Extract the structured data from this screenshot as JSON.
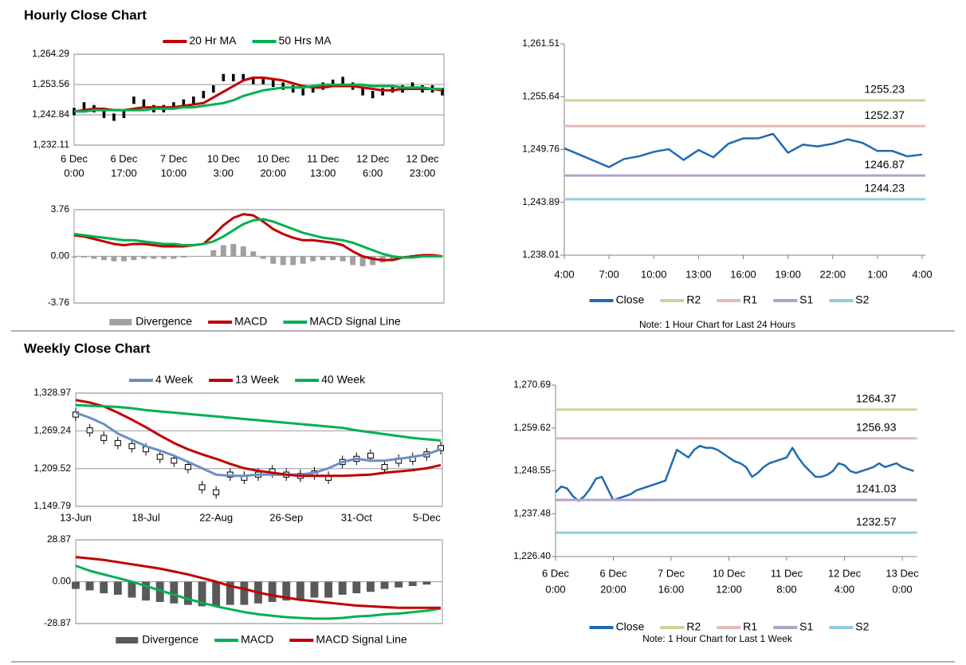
{
  "sections": [
    "Hourly Close Chart",
    "Weekly Close Chart"
  ],
  "chart_data": [
    {
      "type": "price",
      "grid": true,
      "categories": [
        [
          "6 Dec",
          "0:00"
        ],
        null,
        null,
        null,
        null,
        [
          "6 Dec",
          "17:00"
        ],
        null,
        null,
        null,
        null,
        [
          "7 Dec",
          "10:00"
        ],
        null,
        null,
        null,
        null,
        [
          "10 Dec",
          "3:00"
        ],
        null,
        null,
        null,
        null,
        [
          "10 Dec",
          "20:00"
        ],
        null,
        null,
        null,
        null,
        [
          "11 Dec",
          "13:00"
        ],
        null,
        null,
        null,
        null,
        [
          "12 Dec",
          "6:00"
        ],
        null,
        null,
        null,
        null,
        [
          "12 Dec",
          "23:00"
        ],
        null,
        null
      ],
      "ylim": [
        1232.11,
        1264.29
      ],
      "yticks": [
        {
          "value": 1232.11,
          "label": "1,232.11"
        },
        {
          "value": 1242.84,
          "label": "1,242.84"
        },
        {
          "value": 1253.56,
          "label": "1,253.56"
        },
        {
          "value": 1264.29,
          "label": "1,264.29"
        }
      ],
      "price_color": "#000000",
      "price": [
        1244,
        1246,
        1245,
        1243,
        1242,
        1243,
        1248,
        1247,
        1245,
        1245,
        1246,
        1247,
        1248,
        1250,
        1252,
        1256,
        1256,
        1256,
        1255,
        1255,
        1254,
        1253,
        1252,
        1251,
        1252,
        1253,
        1254,
        1255,
        1253,
        1251,
        1250,
        1251,
        1252,
        1252,
        1253,
        1252,
        1252,
        1251
      ],
      "series": [
        {
          "name": "20 Hr MA",
          "color": "#c00000",
          "style": "line",
          "values": [
            1244,
            1244.5,
            1245,
            1245,
            1244.5,
            1244.5,
            1245,
            1245.5,
            1245.5,
            1245.5,
            1245.5,
            1246,
            1246.5,
            1247,
            1249,
            1251,
            1253,
            1255,
            1256,
            1256,
            1255.5,
            1255,
            1254,
            1253,
            1252.5,
            1252.5,
            1253,
            1253,
            1253,
            1252.5,
            1252,
            1251.5,
            1251.5,
            1252,
            1252,
            1252,
            1252,
            1251.5
          ]
        },
        {
          "name": "50 Hrs MA",
          "color": "#00b050",
          "style": "line",
          "values": [
            1244,
            1244,
            1244.5,
            1244.5,
            1244.5,
            1244.5,
            1244.5,
            1244.5,
            1245,
            1245,
            1245,
            1245.5,
            1245.5,
            1246,
            1246.5,
            1247,
            1248,
            1249.5,
            1250.5,
            1251.5,
            1252,
            1252.5,
            1252.5,
            1252.5,
            1253,
            1253.5,
            1253.5,
            1253.5,
            1253.5,
            1253.5,
            1253,
            1253,
            1253,
            1252.5,
            1252.5,
            1252.5,
            1252,
            1252
          ]
        }
      ]
    },
    {
      "type": "macd",
      "grid": true,
      "ylim": [
        -3.76,
        3.76
      ],
      "yticks": [
        -3.76,
        {
          "value": 0,
          "label": "0.00"
        },
        3.76
      ],
      "series": [
        {
          "name": "Divergence",
          "color": "#a0a0a0",
          "style": "bar",
          "values": [
            -0.1,
            -0.1,
            -0.2,
            -0.3,
            -0.4,
            -0.4,
            -0.3,
            -0.2,
            -0.2,
            -0.2,
            -0.2,
            -0.1,
            0,
            0,
            0.5,
            0.9,
            1.0,
            0.8,
            0.4,
            -0.2,
            -0.6,
            -0.7,
            -0.7,
            -0.6,
            -0.4,
            -0.3,
            -0.3,
            -0.4,
            -0.7,
            -0.8,
            -0.7,
            -0.5,
            -0.3,
            0,
            0.1,
            0.1,
            0.1,
            0
          ]
        },
        {
          "name": "MACD",
          "color": "#c00000",
          "style": "line",
          "values": [
            1.7,
            1.6,
            1.4,
            1.2,
            1.0,
            0.9,
            1.0,
            1.0,
            0.9,
            0.8,
            0.8,
            0.8,
            0.9,
            1.0,
            1.7,
            2.5,
            3.1,
            3.4,
            3.3,
            2.8,
            2.2,
            1.8,
            1.5,
            1.3,
            1.3,
            1.2,
            1.1,
            0.9,
            0.4,
            0.0,
            -0.2,
            -0.3,
            -0.3,
            -0.1,
            0.0,
            0.1,
            0.1,
            0.0
          ]
        },
        {
          "name": "MACD Signal Line",
          "color": "#00b050",
          "style": "line",
          "values": [
            1.8,
            1.7,
            1.6,
            1.5,
            1.4,
            1.3,
            1.3,
            1.2,
            1.1,
            1.0,
            1.0,
            0.9,
            0.9,
            1.0,
            1.2,
            1.6,
            2.1,
            2.6,
            2.9,
            3.0,
            2.8,
            2.5,
            2.2,
            1.9,
            1.7,
            1.5,
            1.4,
            1.3,
            1.1,
            0.8,
            0.5,
            0.2,
            0.0,
            -0.1,
            -0.1,
            0.0,
            0.0,
            0.0
          ]
        }
      ]
    },
    {
      "type": "levels",
      "grid": false,
      "note": "Note: 1 Hour Chart for Last 24 Hours",
      "categories": [
        "4:00",
        null,
        null,
        "7:00",
        null,
        null,
        "10:00",
        null,
        null,
        "13:00",
        null,
        null,
        "16:00",
        null,
        null,
        "19:00",
        null,
        null,
        "22:00",
        null,
        null,
        "1:00",
        null,
        null,
        "4:00"
      ],
      "ylim": [
        1238.01,
        1261.51
      ],
      "yticks": [
        {
          "value": 1238.01,
          "label": "1,238.01"
        },
        {
          "value": 1243.89,
          "label": "1,243.89"
        },
        {
          "value": 1249.76,
          "label": "1,249.76"
        },
        {
          "value": 1255.64,
          "label": "1,255.64"
        },
        {
          "value": 1261.51,
          "label": "1,261.51"
        }
      ],
      "series": [
        {
          "name": "Close",
          "color": "#1f6bb0",
          "style": "line",
          "values": [
            1249.9,
            1249.2,
            1248.5,
            1247.8,
            1248.7,
            1249.0,
            1249.5,
            1249.8,
            1248.6,
            1249.7,
            1248.9,
            1250.4,
            1251.0,
            1251.0,
            1251.5,
            1249.4,
            1250.3,
            1250.1,
            1250.4,
            1250.9,
            1250.5,
            1249.6,
            1249.6,
            1249.0,
            1249.2
          ]
        },
        {
          "name": "R2",
          "color": "#c4d79b",
          "style": "level",
          "level": 1255.23
        },
        {
          "name": "R1",
          "color": "#e6b9b8",
          "style": "level",
          "level": 1252.37
        },
        {
          "name": "S1",
          "color": "#b3a2c7",
          "style": "level",
          "level": 1246.87
        },
        {
          "name": "S2",
          "color": "#92cddc",
          "style": "level",
          "level": 1244.23
        }
      ]
    },
    {
      "type": "price",
      "grid": true,
      "categories": [
        "13-Jun",
        null,
        null,
        null,
        null,
        "18-Jul",
        null,
        null,
        null,
        null,
        "22-Aug",
        null,
        null,
        null,
        null,
        "26-Sep",
        null,
        null,
        null,
        null,
        "31-Oct",
        null,
        null,
        null,
        null,
        "5-Dec",
        null
      ],
      "ylim": [
        1149.79,
        1328.97
      ],
      "yticks": [
        {
          "value": 1149.79,
          "label": "1,149.79"
        },
        {
          "value": 1209.52,
          "label": "1,209.52"
        },
        {
          "value": 1269.24,
          "label": "1,269.24"
        },
        {
          "value": 1328.97,
          "label": "1,328.97"
        }
      ],
      "price_color": "#000000",
      "price": [
        1295,
        1270,
        1258,
        1250,
        1245,
        1240,
        1228,
        1222,
        1212,
        1180,
        1172,
        1200,
        1195,
        1200,
        1205,
        1200,
        1198,
        1202,
        1195,
        1220,
        1225,
        1230,
        1212,
        1222,
        1225,
        1232,
        1242
      ],
      "series": [
        {
          "name": "4 Week",
          "color": "#6a8fc6",
          "style": "line",
          "values": [
            1298,
            1290,
            1280,
            1265,
            1255,
            1245,
            1238,
            1230,
            1220,
            1210,
            1200,
            1198,
            1198,
            1200,
            1200,
            1200,
            1200,
            1203,
            1210,
            1220,
            1225,
            1222,
            1222,
            1225,
            1228,
            1232,
            1240
          ]
        },
        {
          "name": "13 Week",
          "color": "#c00000",
          "style": "line",
          "values": [
            1318,
            1314,
            1308,
            1298,
            1287,
            1275,
            1262,
            1250,
            1240,
            1232,
            1225,
            1217,
            1210,
            1206,
            1203,
            1200,
            1198,
            1198,
            1198,
            1198,
            1199,
            1200,
            1203,
            1205,
            1207,
            1210,
            1215
          ]
        },
        {
          "name": "40 Week",
          "color": "#00b050",
          "style": "line",
          "values": [
            1310,
            1309,
            1308,
            1307,
            1305,
            1302,
            1300,
            1298,
            1296,
            1294,
            1292,
            1290,
            1288,
            1286,
            1284,
            1282,
            1280,
            1278,
            1276,
            1274,
            1270,
            1267,
            1264,
            1261,
            1258,
            1256,
            1254
          ]
        }
      ]
    },
    {
      "type": "macd",
      "grid": true,
      "ylim": [
        -28.87,
        28.87
      ],
      "yticks": [
        -28.87,
        {
          "value": 0,
          "label": "0.00"
        },
        28.87
      ],
      "series": [
        {
          "name": "Divergence",
          "color": "#595959",
          "style": "bar",
          "values": [
            -5,
            -6,
            -8,
            -9,
            -11,
            -13,
            -14,
            -15,
            -16,
            -17,
            -17,
            -16,
            -16,
            -15,
            -14,
            -13,
            -12,
            -11,
            -11,
            -9,
            -8,
            -7,
            -5,
            -4,
            -3,
            -2,
            0
          ]
        },
        {
          "name": "MACD",
          "color": "#00b050",
          "style": "line",
          "values": [
            11,
            7.5,
            5,
            2.5,
            0,
            -3,
            -6,
            -9,
            -12,
            -14.5,
            -17,
            -19,
            -21,
            -22.5,
            -23.5,
            -24.5,
            -25,
            -25.5,
            -25.5,
            -25,
            -24,
            -23.5,
            -22.5,
            -22,
            -21,
            -20,
            -18.5
          ]
        },
        {
          "name": "MACD Signal Line",
          "color": "#c00000",
          "style": "line",
          "values": [
            17,
            16,
            15,
            13.5,
            12,
            10.5,
            9,
            7,
            5,
            2.5,
            0,
            -3,
            -5,
            -7.5,
            -9.5,
            -11,
            -12.5,
            -13.5,
            -14.5,
            -15.5,
            -16.5,
            -17,
            -17.5,
            -18,
            -18,
            -18,
            -18
          ]
        }
      ]
    },
    {
      "type": "levels",
      "grid": false,
      "note": "Note: 1 Hour Chart for Last 1 Week",
      "categories": [
        [
          "6 Dec",
          "0:00"
        ],
        null,
        null,
        null,
        null,
        null,
        null,
        null,
        null,
        null,
        [
          "6 Dec",
          "20:00"
        ],
        null,
        null,
        null,
        null,
        null,
        null,
        null,
        null,
        null,
        [
          "7 Dec",
          "16:00"
        ],
        null,
        null,
        null,
        null,
        null,
        null,
        null,
        null,
        null,
        [
          "10 Dec",
          "12:00"
        ],
        null,
        null,
        null,
        null,
        null,
        null,
        null,
        null,
        null,
        [
          "11 Dec",
          "8:00"
        ],
        null,
        null,
        null,
        null,
        null,
        null,
        null,
        null,
        null,
        [
          "12 Dec",
          "4:00"
        ],
        null,
        null,
        null,
        null,
        null,
        null,
        null,
        null,
        null,
        [
          "13 Dec",
          "0:00"
        ],
        null,
        null
      ],
      "ylim": [
        1226.4,
        1270.69
      ],
      "yticks": [
        {
          "value": 1226.4,
          "label": "1,226.40"
        },
        {
          "value": 1237.48,
          "label": "1,237.48"
        },
        {
          "value": 1248.55,
          "label": "1,248.55"
        },
        {
          "value": 1259.62,
          "label": "1,259.62"
        },
        {
          "value": 1270.69,
          "label": "1,270.69"
        }
      ],
      "series": [
        {
          "name": "Close",
          "color": "#1f6bb0",
          "style": "line",
          "values": [
            1243,
            1244.5,
            1244,
            1242,
            1240.8,
            1242,
            1244,
            1246.5,
            1247,
            1244,
            1241,
            1241.5,
            1242,
            1242.5,
            1243.5,
            1244,
            1244.5,
            1245,
            1245.5,
            1246,
            1250,
            1254,
            1253,
            1252,
            1254,
            1255,
            1254.5,
            1254.5,
            1254,
            1253,
            1252,
            1251,
            1250.5,
            1249.5,
            1247,
            1248,
            1249.5,
            1250.5,
            1251,
            1251.5,
            1252,
            1254.5,
            1252,
            1250,
            1248.5,
            1247,
            1247,
            1247.5,
            1248.5,
            1250.5,
            1250,
            1248.5,
            1248,
            1248.5,
            1249,
            1249.5,
            1250.5,
            1249.5,
            1250,
            1250.5,
            1249.5,
            1249,
            1248.5
          ]
        },
        {
          "name": "R2",
          "color": "#c4d79b",
          "style": "level",
          "level": 1264.37
        },
        {
          "name": "R1",
          "color": "#e6b9b8",
          "style": "level",
          "level": 1256.93
        },
        {
          "name": "S1",
          "color": "#b3a2c7",
          "style": "level",
          "level": 1241.03
        },
        {
          "name": "S2",
          "color": "#92cddc",
          "style": "level",
          "level": 1232.57
        }
      ]
    }
  ]
}
